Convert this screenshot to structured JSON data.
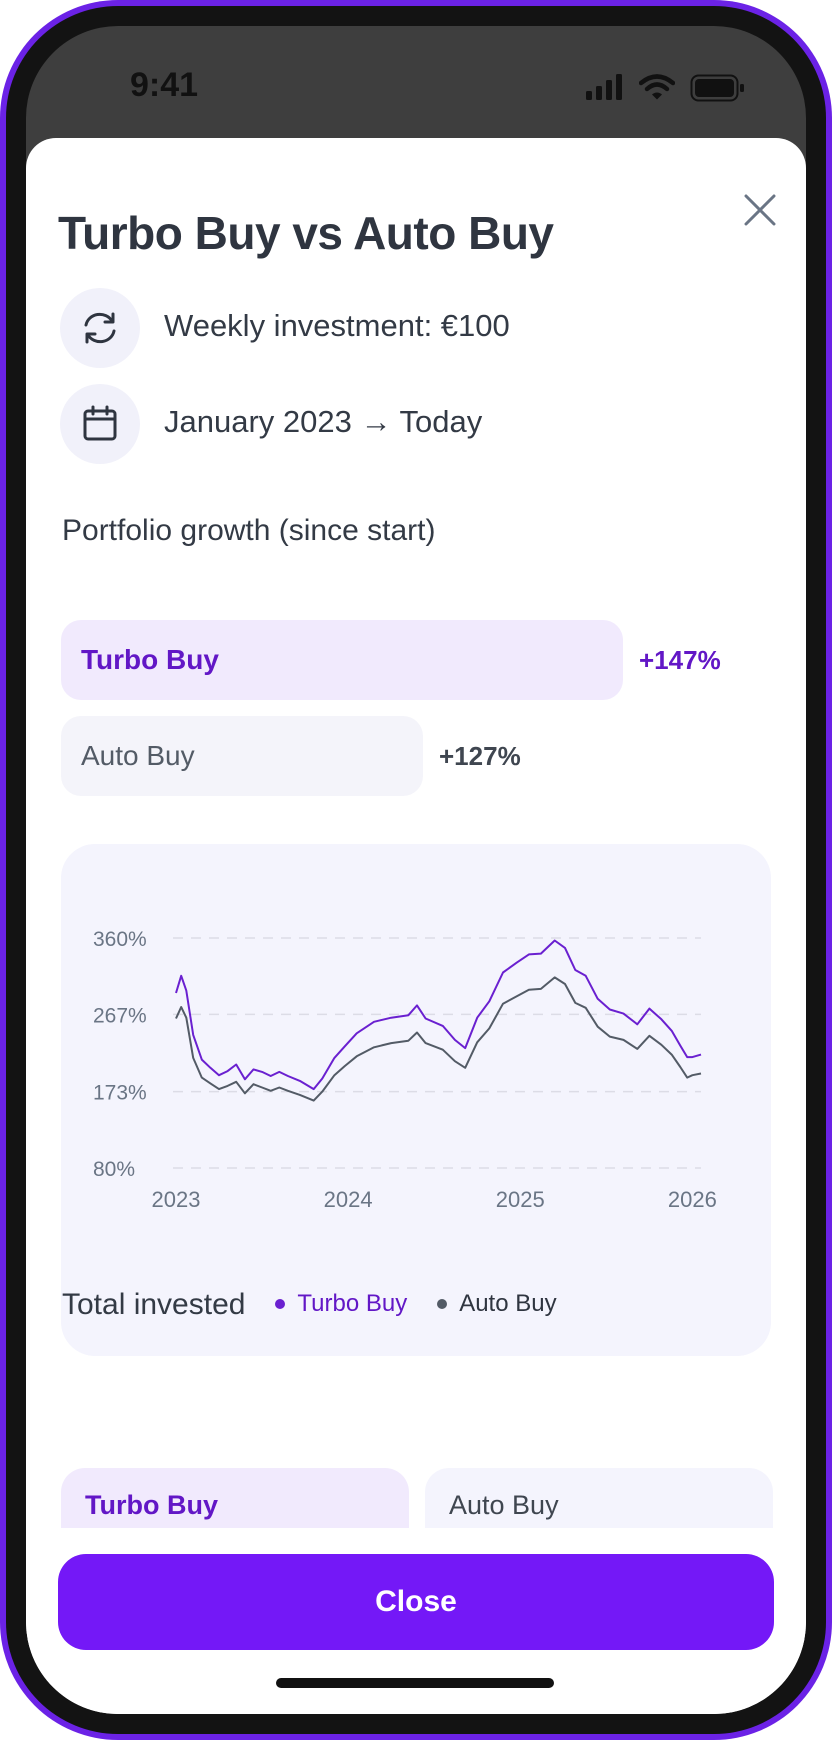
{
  "status_bar": {
    "time": "9:41"
  },
  "sheet": {
    "title": "Turbo Buy vs Auto Buy",
    "info_rows": [
      {
        "icon": "refresh-icon",
        "text": "Weekly investment: €100"
      },
      {
        "icon": "calendar-icon",
        "text": "January 2023 → Today"
      }
    ],
    "growth": {
      "label": "Portfolio growth (since start)",
      "bars": [
        {
          "name": "Turbo Buy",
          "value": "+147%",
          "percent": 147
        },
        {
          "name": "Auto Buy",
          "value": "+127%",
          "percent": 127
        }
      ]
    },
    "total_invested": {
      "label": "Total invested",
      "cards": [
        "Turbo Buy",
        "Auto Buy"
      ]
    },
    "close_label": "Close"
  },
  "colors": {
    "accent": "#7418f7",
    "turbo": "#6a20d0",
    "auto": "#535b66",
    "turbo_bg": "#f1eafd",
    "card_bg": "#f4f4fd"
  },
  "chart_data": {
    "type": "line",
    "y_ticks": [
      "360%",
      "267%",
      "173%",
      "80%"
    ],
    "y_tick_values": [
      360,
      267,
      173,
      80
    ],
    "x_ticks": [
      "2023",
      "2024",
      "2025",
      "2026"
    ],
    "x_tick_values": [
      2023,
      2024,
      2025,
      2026
    ],
    "ylim": [
      80,
      360
    ],
    "xlim": [
      2023,
      2026.05
    ],
    "grid": true,
    "legend": "bottom-center",
    "series": [
      {
        "name": "Turbo Buy",
        "color": "#6a20d0",
        "points": [
          [
            2023.0,
            293
          ],
          [
            2023.03,
            314
          ],
          [
            2023.06,
            296
          ],
          [
            2023.1,
            242
          ],
          [
            2023.15,
            212
          ],
          [
            2023.2,
            202
          ],
          [
            2023.25,
            193
          ],
          [
            2023.3,
            198
          ],
          [
            2023.35,
            206
          ],
          [
            2023.4,
            188
          ],
          [
            2023.45,
            200
          ],
          [
            2023.5,
            197
          ],
          [
            2023.55,
            192
          ],
          [
            2023.6,
            197
          ],
          [
            2023.65,
            192
          ],
          [
            2023.72,
            186
          ],
          [
            2023.8,
            176
          ],
          [
            2023.85,
            189
          ],
          [
            2023.92,
            214
          ],
          [
            2023.98,
            228
          ],
          [
            2024.05,
            244
          ],
          [
            2024.15,
            258
          ],
          [
            2024.25,
            263
          ],
          [
            2024.35,
            266
          ],
          [
            2024.4,
            278
          ],
          [
            2024.45,
            262
          ],
          [
            2024.55,
            253
          ],
          [
            2024.62,
            236
          ],
          [
            2024.68,
            226
          ],
          [
            2024.75,
            263
          ],
          [
            2024.82,
            283
          ],
          [
            2024.9,
            318
          ],
          [
            2024.98,
            330
          ],
          [
            2025.05,
            340
          ],
          [
            2025.12,
            341
          ],
          [
            2025.2,
            357
          ],
          [
            2025.26,
            348
          ],
          [
            2025.32,
            321
          ],
          [
            2025.38,
            314
          ],
          [
            2025.45,
            286
          ],
          [
            2025.52,
            273
          ],
          [
            2025.6,
            268
          ],
          [
            2025.68,
            255
          ],
          [
            2025.75,
            274
          ],
          [
            2025.82,
            261
          ],
          [
            2025.88,
            247
          ],
          [
            2025.93,
            229
          ],
          [
            2025.97,
            215
          ],
          [
            2026.0,
            215
          ],
          [
            2026.05,
            218
          ]
        ]
      },
      {
        "name": "Auto Buy",
        "color": "#535b66",
        "points": [
          [
            2023.0,
            262
          ],
          [
            2023.03,
            276
          ],
          [
            2023.06,
            263
          ],
          [
            2023.1,
            214
          ],
          [
            2023.15,
            190
          ],
          [
            2023.2,
            183
          ],
          [
            2023.25,
            176
          ],
          [
            2023.3,
            180
          ],
          [
            2023.35,
            185
          ],
          [
            2023.4,
            171
          ],
          [
            2023.45,
            182
          ],
          [
            2023.5,
            178
          ],
          [
            2023.55,
            174
          ],
          [
            2023.6,
            178
          ],
          [
            2023.65,
            174
          ],
          [
            2023.72,
            169
          ],
          [
            2023.8,
            162
          ],
          [
            2023.85,
            173
          ],
          [
            2023.92,
            193
          ],
          [
            2023.98,
            204
          ],
          [
            2024.05,
            216
          ],
          [
            2024.15,
            227
          ],
          [
            2024.25,
            232
          ],
          [
            2024.35,
            235
          ],
          [
            2024.4,
            245
          ],
          [
            2024.45,
            232
          ],
          [
            2024.55,
            224
          ],
          [
            2024.62,
            210
          ],
          [
            2024.68,
            202
          ],
          [
            2024.75,
            233
          ],
          [
            2024.82,
            250
          ],
          [
            2024.9,
            280
          ],
          [
            2024.98,
            289
          ],
          [
            2025.05,
            297
          ],
          [
            2025.12,
            298
          ],
          [
            2025.2,
            312
          ],
          [
            2025.26,
            304
          ],
          [
            2025.32,
            281
          ],
          [
            2025.38,
            275
          ],
          [
            2025.45,
            252
          ],
          [
            2025.52,
            240
          ],
          [
            2025.6,
            236
          ],
          [
            2025.68,
            225
          ],
          [
            2025.75,
            241
          ],
          [
            2025.82,
            230
          ],
          [
            2025.88,
            218
          ],
          [
            2025.93,
            203
          ],
          [
            2025.97,
            190
          ],
          [
            2026.0,
            193
          ],
          [
            2026.05,
            195
          ]
        ]
      }
    ]
  }
}
